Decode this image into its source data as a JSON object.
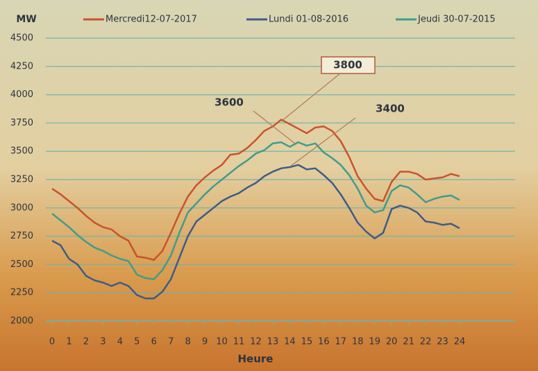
{
  "chart_data": {
    "type": "line",
    "y_label": "MW",
    "x_label": "Heure",
    "x": [
      0,
      0.5,
      1,
      1.5,
      2,
      2.5,
      3,
      3.5,
      4,
      4.5,
      5,
      5.5,
      6,
      6.5,
      7,
      7.5,
      8,
      8.5,
      9,
      9.5,
      10,
      10.5,
      11,
      11.5,
      12,
      12.5,
      13,
      13.5,
      14,
      14.5,
      15,
      15.5,
      16,
      16.5,
      17,
      17.5,
      18,
      18.5,
      19,
      19.5,
      20,
      20.5,
      21,
      21.5,
      22,
      22.5,
      23,
      23.5,
      24
    ],
    "series": [
      {
        "name": "Mercredi12-07-2017",
        "color": "#c9532b",
        "values": [
          3170,
          3120,
          3060,
          3000,
          2930,
          2870,
          2830,
          2810,
          2750,
          2710,
          2570,
          2560,
          2540,
          2620,
          2780,
          2950,
          3100,
          3200,
          3270,
          3330,
          3380,
          3470,
          3480,
          3530,
          3600,
          3680,
          3720,
          3780,
          3740,
          3700,
          3660,
          3710,
          3720,
          3680,
          3590,
          3450,
          3280,
          3170,
          3080,
          3060,
          3230,
          3320,
          3320,
          3300,
          3250,
          3260,
          3270,
          3300,
          3280
        ]
      },
      {
        "name": "Lundi 01-08-2016",
        "color": "#3d5c88",
        "values": [
          2710,
          2670,
          2550,
          2500,
          2400,
          2360,
          2340,
          2310,
          2340,
          2310,
          2230,
          2200,
          2200,
          2260,
          2370,
          2560,
          2750,
          2880,
          2940,
          3000,
          3060,
          3100,
          3130,
          3180,
          3220,
          3280,
          3320,
          3350,
          3360,
          3380,
          3340,
          3350,
          3290,
          3220,
          3120,
          3000,
          2870,
          2790,
          2730,
          2780,
          2990,
          3020,
          3000,
          2960,
          2880,
          2870,
          2850,
          2860,
          2820
        ]
      },
      {
        "name": "Jeudi 30-07-2015",
        "color": "#3f9c8c",
        "values": [
          2950,
          2890,
          2830,
          2760,
          2700,
          2650,
          2620,
          2580,
          2550,
          2530,
          2410,
          2380,
          2370,
          2450,
          2580,
          2780,
          2960,
          3040,
          3120,
          3190,
          3250,
          3310,
          3370,
          3420,
          3480,
          3510,
          3570,
          3580,
          3540,
          3580,
          3550,
          3570,
          3490,
          3440,
          3380,
          3290,
          3170,
          3020,
          2960,
          2980,
          3150,
          3200,
          3180,
          3120,
          3050,
          3080,
          3100,
          3110,
          3070
        ]
      }
    ],
    "xlim": [
      0,
      24
    ],
    "xticks": [
      0,
      1,
      2,
      3,
      4,
      5,
      6,
      7,
      8,
      9,
      10,
      11,
      12,
      13,
      14,
      15,
      16,
      17,
      18,
      19,
      20,
      21,
      22,
      23,
      24
    ],
    "ylim": [
      2000,
      4500
    ],
    "yticks": [
      2000,
      2250,
      2500,
      2750,
      3000,
      3250,
      3500,
      3750,
      4000,
      4250,
      4500
    ],
    "grid": true,
    "annotations": [
      "3800",
      "3600",
      "3400"
    ]
  }
}
